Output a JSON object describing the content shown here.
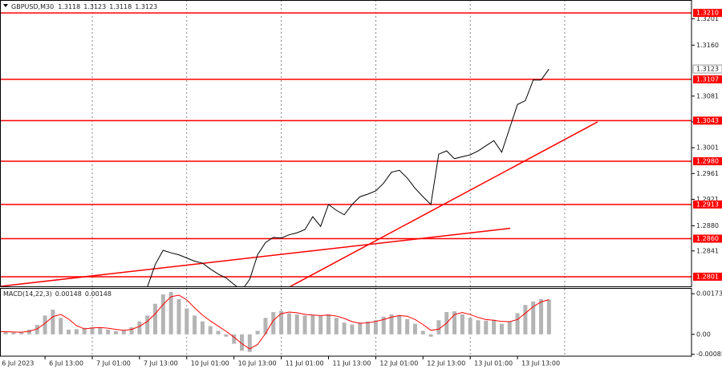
{
  "chart_data": [
    {
      "type": "line",
      "title": "GBPUSD,M30",
      "header_values": [
        1.3118,
        1.3123,
        1.3118,
        1.3123
      ],
      "x": [
        0,
        4,
        8,
        12,
        16,
        20,
        24,
        28,
        32,
        36,
        40,
        44,
        48,
        52,
        56,
        60,
        64,
        68,
        72,
        76,
        80,
        84,
        88,
        92,
        96,
        100,
        104,
        108,
        112,
        116,
        120,
        124,
        128,
        132,
        136,
        140,
        144,
        148,
        152,
        156,
        160,
        164,
        168,
        172,
        176,
        180,
        184,
        188,
        192,
        196,
        200,
        204,
        208,
        212,
        216,
        220,
        224,
        228,
        232,
        236,
        240,
        244,
        248,
        252,
        256,
        260,
        264,
        268,
        272,
        276,
        280
      ],
      "series": [
        {
          "color": "#000000",
          "values": [
            1.277,
            1.2768,
            1.2772,
            1.2775,
            1.2778,
            1.2781,
            1.2783,
            1.2782,
            1.2778,
            1.2775,
            1.2774,
            1.2776,
            1.2777,
            1.2776,
            1.2775,
            1.2774,
            1.2773,
            1.2776,
            1.278,
            1.2785,
            1.282,
            1.2842,
            1.2838,
            1.2835,
            1.283,
            1.2825,
            1.2822,
            1.2813,
            1.2805,
            1.2799,
            1.2789,
            1.278,
            1.2797,
            1.2835,
            1.2854,
            1.2862,
            1.2861,
            1.2866,
            1.2869,
            1.2874,
            1.2894,
            1.2879,
            1.2913,
            1.2904,
            1.2897,
            1.2913,
            1.2925,
            1.2929,
            1.2934,
            1.2946,
            1.2963,
            1.2966,
            1.2954,
            1.2938,
            1.2925,
            1.2913,
            1.2991,
            1.2996,
            1.2984,
            1.2987,
            1.299,
            1.2996,
            1.3004,
            1.3012,
            1.2994,
            1.3031,
            1.3068,
            1.3074,
            1.3106,
            1.3106,
            1.3123
          ]
        }
      ],
      "xlim": [
        1.14,
        352.4
      ],
      "ylim": [
        1.2786,
        1.323
      ],
      "yticks": [
        1.3201,
        {
          "value": 1.316,
          "label": "1.3160"
        },
        1.3081,
        1.3041,
        1.3001,
        1.2961,
        1.2921,
        {
          "value": 1.288,
          "label": "1.2880"
        },
        1.2841
      ],
      "current_price": 1.3123,
      "levels": [
        {
          "value": 1.321,
          "label": "1.3210"
        },
        1.3107,
        1.3043,
        {
          "value": 1.298,
          "label": "1.2980"
        },
        1.2913,
        {
          "value": 1.286,
          "label": "1.2860"
        },
        1.2801
      ],
      "level_color": "#ff0000",
      "trendlines": [
        {
          "x": [
            1.14,
            260.3
          ],
          "y": [
            1.2786,
            1.2876
          ]
        },
        {
          "x": [
            148.7,
            304.7
          ],
          "y": [
            1.2786,
            1.3041
          ]
        }
      ],
      "xgrid": [
        48,
        96,
        144,
        192,
        240,
        288
      ]
    },
    {
      "type": "bar",
      "title": "MACD(14,22,3)",
      "header_values": [
        0.00148,
        0.00148
      ],
      "x": [
        0,
        4,
        8,
        12,
        16,
        20,
        24,
        28,
        32,
        36,
        40,
        44,
        48,
        52,
        56,
        60,
        64,
        68,
        72,
        76,
        80,
        84,
        88,
        92,
        96,
        100,
        104,
        108,
        112,
        116,
        120,
        124,
        128,
        132,
        136,
        140,
        144,
        148,
        152,
        156,
        160,
        164,
        168,
        172,
        176,
        180,
        184,
        188,
        192,
        196,
        200,
        204,
        208,
        212,
        216,
        220,
        224,
        228,
        232,
        236,
        240,
        244,
        248,
        252,
        256,
        260,
        264,
        268,
        272,
        276,
        280
      ],
      "series": [
        {
          "color": "#b4b4b4",
          "values": [
            0.00012,
            0.0001,
            8e-05,
            0.0001,
            0.0002,
            0.0004,
            0.0008,
            0.00105,
            0.0007,
            0.0002,
            0.00022,
            0.00028,
            0.0003,
            0.00028,
            0.0002,
            0.00014,
            0.00018,
            0.0003,
            0.00055,
            0.0008,
            0.0013,
            0.0017,
            0.0018,
            0.0015,
            0.0011,
            0.0008,
            0.00055,
            0.00035,
            0.00015,
            -0.0001,
            -0.0004,
            -0.0007,
            -0.00075,
            0.00015,
            0.0007,
            0.00095,
            0.001,
            0.0009,
            0.00085,
            0.0008,
            0.00082,
            0.00078,
            0.00085,
            0.0007,
            0.0005,
            0.00042,
            0.0005,
            0.00055,
            0.0006,
            0.00075,
            0.00085,
            0.0008,
            0.00065,
            0.00045,
            0.00015,
            -0.0001,
            0.0006,
            0.00095,
            0.00098,
            0.00085,
            0.0007,
            0.0006,
            0.00058,
            0.00062,
            0.00045,
            0.00055,
            0.0009,
            0.00125,
            0.0014,
            0.0015,
            0.00148
          ]
        },
        {
          "color": "#ff0000",
          "type": "line",
          "values": [
            0.00012,
            0.00011,
            0.0001,
            9e-05,
            0.00013,
            0.00023,
            0.00047,
            0.00075,
            0.00085,
            0.00065,
            0.00037,
            0.00023,
            0.00027,
            0.00029,
            0.00026,
            0.00021,
            0.00017,
            0.00021,
            0.00034,
            0.00055,
            0.00088,
            0.00127,
            0.0016,
            0.00167,
            0.00147,
            0.00113,
            0.00082,
            0.00057,
            0.00035,
            0.00013,
            -0.00012,
            -0.0004,
            -0.00062,
            -0.00043,
            3e-05,
            0.0006,
            0.00088,
            0.00095,
            0.00092,
            0.00085,
            0.00082,
            0.0008,
            0.00082,
            0.00078,
            0.00068,
            0.00054,
            0.00047,
            0.00049,
            0.00055,
            0.00063,
            0.00073,
            0.0008,
            0.00077,
            0.00063,
            0.00042,
            0.00017,
            0.00022,
            0.00048,
            0.00084,
            0.00093,
            0.00084,
            0.00072,
            0.00063,
            0.0006,
            0.00055,
            0.00054,
            0.00063,
            0.0009,
            0.00118,
            0.00138,
            0.00148
          ]
        }
      ],
      "xlim": [
        1.14,
        352.4
      ],
      "ylim": [
        -0.00093,
        0.00194
      ],
      "yticks": [
        0.00173,
        {
          "value": 0,
          "label": "0.00"
        },
        -0.00085
      ],
      "xticks": [
        {
          "value": 0,
          "label": "6 Jul 2023"
        },
        {
          "value": 24,
          "label": "6 Jul 13:00"
        },
        {
          "value": 48,
          "label": "7 Jul 01:00"
        },
        {
          "value": 72,
          "label": "7 Jul 13:00"
        },
        {
          "value": 96,
          "label": "10 Jul 01:00"
        },
        {
          "value": 120,
          "label": "10 Jul 13:00"
        },
        {
          "value": 144,
          "label": "11 Jul 01:00"
        },
        {
          "value": 168,
          "label": "11 Jul 13:00"
        },
        {
          "value": 192,
          "label": "12 Jul 01:00"
        },
        {
          "value": 216,
          "label": "12 Jul 13:00"
        },
        {
          "value": 240,
          "label": "13 Jul 01:00"
        },
        {
          "value": 264,
          "label": "13 Jul 13:00"
        }
      ]
    }
  ]
}
